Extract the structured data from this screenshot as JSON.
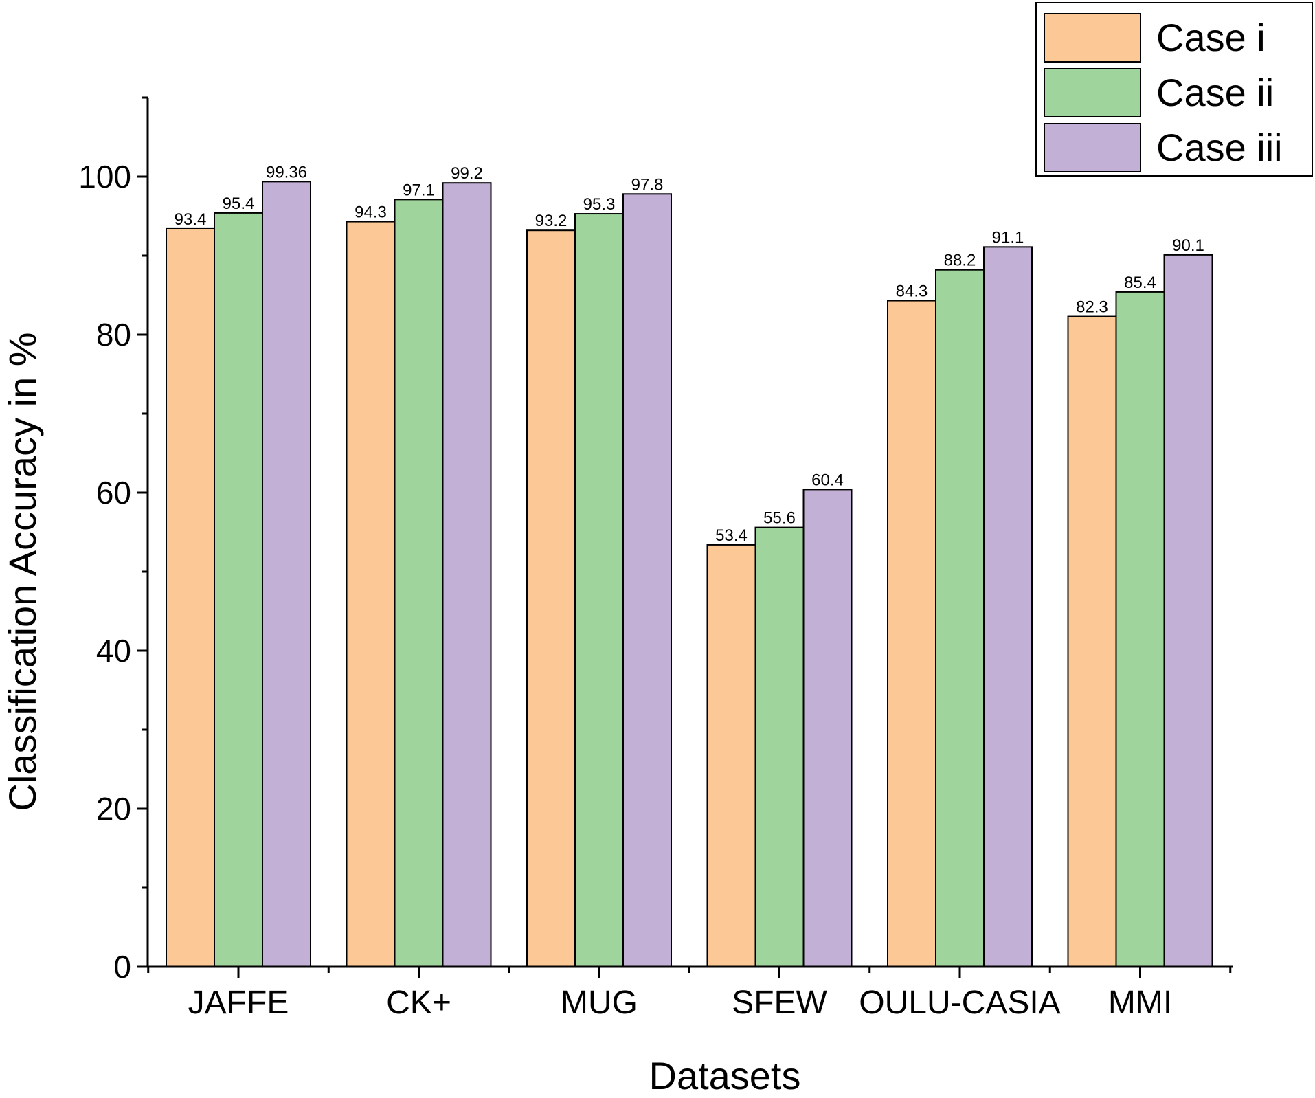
{
  "chart_data": {
    "type": "bar",
    "title": "",
    "xlabel": "Datasets",
    "ylabel": "Classification Accuracy in %",
    "ylim": [
      0,
      110
    ],
    "yticks": [
      0,
      20,
      40,
      60,
      80,
      100
    ],
    "categories": [
      "JAFFE",
      "CK+",
      "MUG",
      "SFEW",
      "OULU-CASIA",
      "MMI"
    ],
    "series": [
      {
        "name": "Case i",
        "color": "#fbc896",
        "values": [
          93.4,
          94.3,
          93.2,
          53.4,
          84.3,
          82.3
        ],
        "labels": [
          "93.4",
          "94.3",
          "93.2",
          "53.4",
          "84.3",
          "82.3"
        ]
      },
      {
        "name": "Case ii",
        "color": "#9fd49c",
        "values": [
          95.4,
          97.1,
          95.3,
          55.6,
          88.2,
          85.4
        ],
        "labels": [
          "95.4",
          "97.1",
          "95.3",
          "55.6",
          "88.2",
          "85.4"
        ]
      },
      {
        "name": "Case iii",
        "color": "#c3b0d6",
        "values": [
          99.36,
          99.2,
          97.8,
          60.4,
          91.1,
          90.1
        ],
        "labels": [
          "99.36",
          "99.2",
          "97.8",
          "60.4",
          "91.1",
          "90.1"
        ]
      }
    ],
    "legend_position": "top-right",
    "grid": false
  }
}
